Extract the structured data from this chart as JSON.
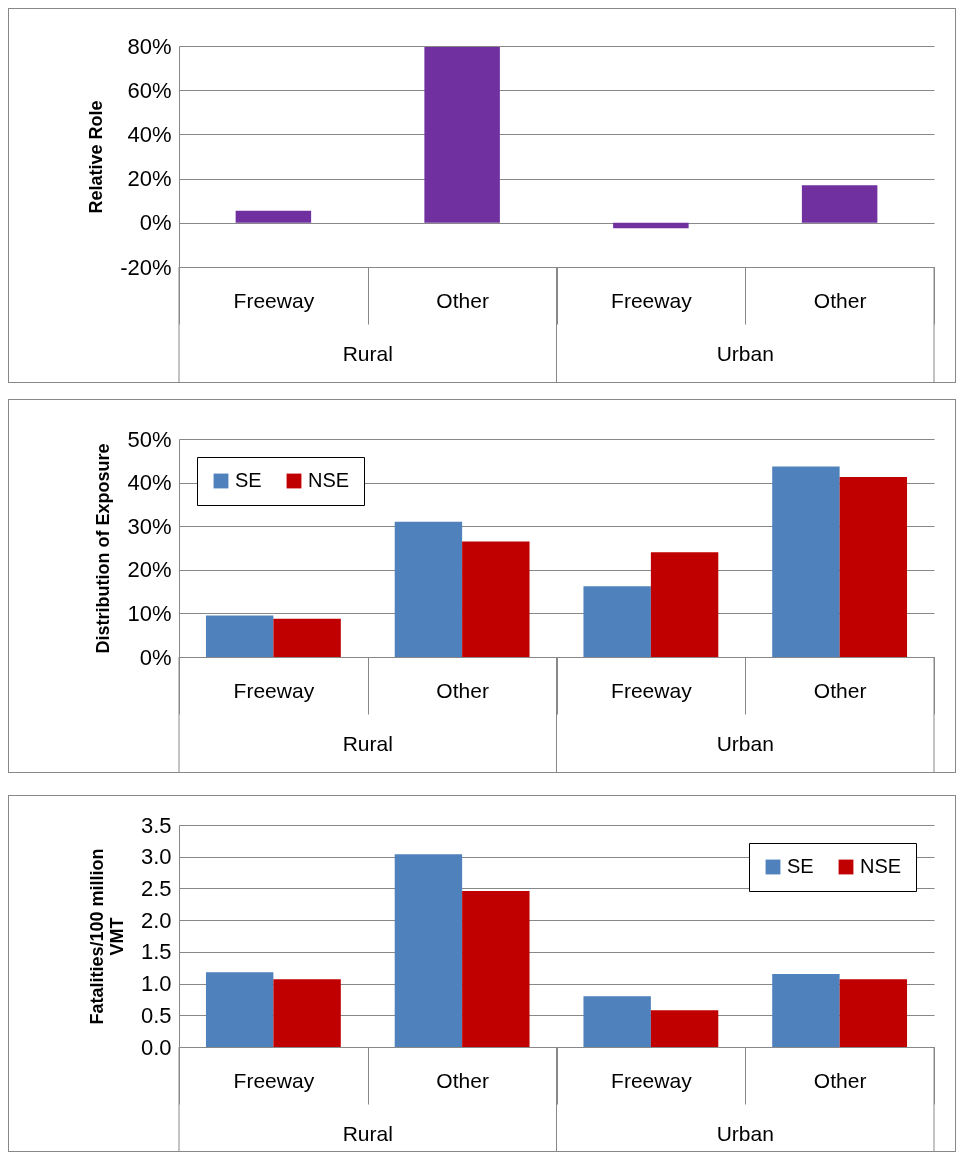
{
  "chart_data": [
    {
      "type": "bar",
      "ylabel": "Relative Role",
      "categories": [
        "Freeway",
        "Other",
        "Freeway",
        "Other"
      ],
      "values": [
        5.5,
        79.5,
        -2.5,
        17
      ],
      "color": "#7030a0",
      "ylim": [
        -20,
        80
      ],
      "yticks": [
        {
          "value": -20,
          "label": "-20%"
        },
        {
          "value": 0,
          "label": "0%"
        },
        {
          "value": 20,
          "label": "20%"
        },
        {
          "value": 40,
          "label": "40%"
        },
        {
          "value": 60,
          "label": "60%"
        },
        {
          "value": 80,
          "label": "80%"
        }
      ],
      "grid": "y",
      "annotations": [
        "Rural",
        "Urban"
      ]
    },
    {
      "type": "bar",
      "ylabel": "Distribution of Exposure",
      "categories": [
        "Freeway",
        "Other",
        "Freeway",
        "Other"
      ],
      "series": [
        {
          "name": "SE",
          "color": "#4f81bd",
          "values": [
            9.5,
            31,
            16.2,
            43.7
          ]
        },
        {
          "name": "NSE",
          "color": "#c00000",
          "values": [
            8.8,
            26.5,
            24,
            41.3
          ]
        }
      ],
      "ylim": [
        0,
        50
      ],
      "yticks": [
        {
          "value": 0,
          "label": "0%"
        },
        {
          "value": 10,
          "label": "10%"
        },
        {
          "value": 20,
          "label": "20%"
        },
        {
          "value": 30,
          "label": "30%"
        },
        {
          "value": 40,
          "label": "40%"
        },
        {
          "value": 50,
          "label": "50%"
        }
      ],
      "grid": "y",
      "legend": "top left",
      "annotations": [
        "Rural",
        "Urban"
      ]
    },
    {
      "type": "bar",
      "ylabel": "Fatalities/100 million VMT",
      "categories": [
        "Freeway",
        "Other",
        "Freeway",
        "Other"
      ],
      "series": [
        {
          "name": "SE",
          "color": "#4f81bd",
          "values": [
            1.18,
            3.04,
            0.8,
            1.15
          ]
        },
        {
          "name": "NSE",
          "color": "#c00000",
          "values": [
            1.07,
            2.46,
            0.58,
            1.07
          ]
        }
      ],
      "ylim": [
        0,
        3.5
      ],
      "yticks": [
        {
          "value": 0,
          "label": "0.0"
        },
        {
          "value": 0.5,
          "label": "0.5"
        },
        {
          "value": 1,
          "label": "1.0"
        },
        {
          "value": 1.5,
          "label": "1.5"
        },
        {
          "value": 2,
          "label": "2.0"
        },
        {
          "value": 2.5,
          "label": "2.5"
        },
        {
          "value": 3,
          "label": "3.0"
        },
        {
          "value": 3.5,
          "label": "3.5"
        }
      ],
      "grid": "y",
      "legend": "top right",
      "annotations": [
        "Rural",
        "Urban"
      ]
    }
  ]
}
